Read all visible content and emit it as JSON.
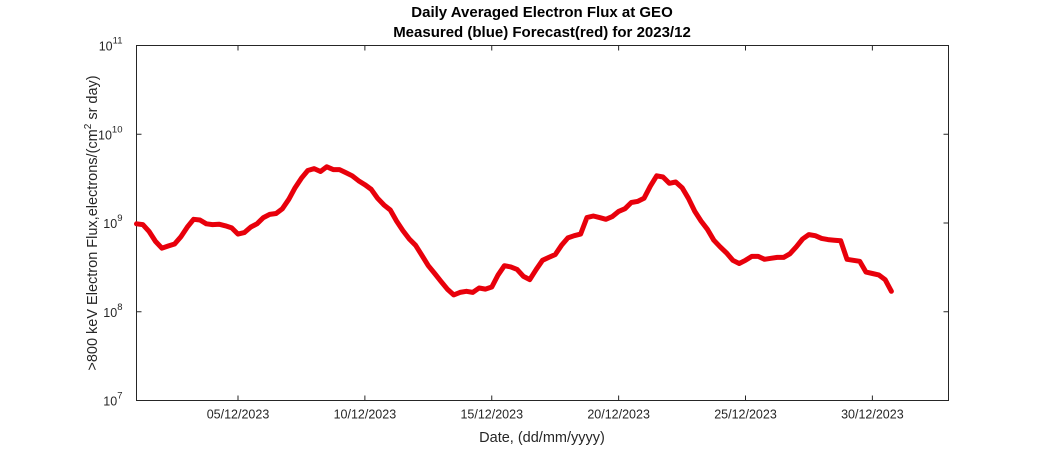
{
  "chart_data": {
    "type": "line",
    "title": "Daily Averaged Electron Flux at GEO",
    "subtitle": "Measured (blue) Forecast(red) for 2023/12",
    "xlabel": "Date, (dd/mm/yyyy)",
    "ylabel": ">800 keV Electron Flux,electrons/(cm^2 sr day)",
    "ylabel_prefix": ">800 keV Electron Flux,electrons/(cm",
    "ylabel_sup": "2",
    "ylabel_suffix": " sr day)",
    "y_scale": "log",
    "xlim": [
      "2023-12-01",
      "2024-01-02"
    ],
    "ylim": [
      10000000.0,
      100000000000.0
    ],
    "x_ticks": [
      {
        "date": "2023-12-05",
        "label": "05/12/2023"
      },
      {
        "date": "2023-12-10",
        "label": "10/12/2023"
      },
      {
        "date": "2023-12-15",
        "label": "15/12/2023"
      },
      {
        "date": "2023-12-20",
        "label": "20/12/2023"
      },
      {
        "date": "2023-12-25",
        "label": "25/12/2023"
      },
      {
        "date": "2023-12-30",
        "label": "30/12/2023"
      }
    ],
    "y_ticks": [
      {
        "value": 10000000.0,
        "base": "10",
        "exp": "7"
      },
      {
        "value": 100000000.0,
        "base": "10",
        "exp": "8"
      },
      {
        "value": 1000000000.0,
        "base": "10",
        "exp": "9"
      },
      {
        "value": 10000000000.0,
        "base": "10",
        "exp": "10"
      },
      {
        "value": 100000000000.0,
        "base": "10",
        "exp": "11"
      }
    ],
    "grid": false,
    "series": [
      {
        "color": "#e8000b",
        "points": [
          [
            "2023-12-01 00:00",
            980000000.0
          ],
          [
            "2023-12-01 06:00",
            960000000.0
          ],
          [
            "2023-12-01 12:00",
            800000000.0
          ],
          [
            "2023-12-01 18:00",
            620000000.0
          ],
          [
            "2023-12-02 00:00",
            520000000.0
          ],
          [
            "2023-12-02 06:00",
            550000000.0
          ],
          [
            "2023-12-02 12:00",
            580000000.0
          ],
          [
            "2023-12-02 18:00",
            700000000.0
          ],
          [
            "2023-12-03 00:00",
            900000000.0
          ],
          [
            "2023-12-03 06:00",
            1100000000.0
          ],
          [
            "2023-12-03 12:00",
            1080000000.0
          ],
          [
            "2023-12-03 18:00",
            980000000.0
          ],
          [
            "2023-12-04 00:00",
            960000000.0
          ],
          [
            "2023-12-04 06:00",
            970000000.0
          ],
          [
            "2023-12-04 12:00",
            930000000.0
          ],
          [
            "2023-12-04 18:00",
            880000000.0
          ],
          [
            "2023-12-05 00:00",
            750000000.0
          ],
          [
            "2023-12-05 06:00",
            780000000.0
          ],
          [
            "2023-12-05 12:00",
            900000000.0
          ],
          [
            "2023-12-05 18:00",
            980000000.0
          ],
          [
            "2023-12-06 00:00",
            1150000000.0
          ],
          [
            "2023-12-06 06:00",
            1250000000.0
          ],
          [
            "2023-12-06 12:00",
            1280000000.0
          ],
          [
            "2023-12-06 18:00",
            1450000000.0
          ],
          [
            "2023-12-07 00:00",
            1850000000.0
          ],
          [
            "2023-12-07 06:00",
            2500000000.0
          ],
          [
            "2023-12-07 12:00",
            3200000000.0
          ],
          [
            "2023-12-07 18:00",
            3900000000.0
          ],
          [
            "2023-12-08 00:00",
            4100000000.0
          ],
          [
            "2023-12-08 06:00",
            3800000000.0
          ],
          [
            "2023-12-08 12:00",
            4300000000.0
          ],
          [
            "2023-12-08 18:00",
            4000000000.0
          ],
          [
            "2023-12-09 00:00",
            4000000000.0
          ],
          [
            "2023-12-09 06:00",
            3700000000.0
          ],
          [
            "2023-12-09 12:00",
            3400000000.0
          ],
          [
            "2023-12-09 18:00",
            3000000000.0
          ],
          [
            "2023-12-10 00:00",
            2700000000.0
          ],
          [
            "2023-12-10 06:00",
            2400000000.0
          ],
          [
            "2023-12-10 12:00",
            1900000000.0
          ],
          [
            "2023-12-10 18:00",
            1600000000.0
          ],
          [
            "2023-12-11 00:00",
            1400000000.0
          ],
          [
            "2023-12-11 06:00",
            1050000000.0
          ],
          [
            "2023-12-11 12:00",
            820000000.0
          ],
          [
            "2023-12-11 18:00",
            660000000.0
          ],
          [
            "2023-12-12 00:00",
            560000000.0
          ],
          [
            "2023-12-12 06:00",
            430000000.0
          ],
          [
            "2023-12-12 12:00",
            330000000.0
          ],
          [
            "2023-12-12 18:00",
            270000000.0
          ],
          [
            "2023-12-13 00:00",
            220000000.0
          ],
          [
            "2023-12-13 06:00",
            180000000.0
          ],
          [
            "2023-12-13 12:00",
            155000000.0
          ],
          [
            "2023-12-13 18:00",
            165000000.0
          ],
          [
            "2023-12-14 00:00",
            170000000.0
          ],
          [
            "2023-12-14 06:00",
            165000000.0
          ],
          [
            "2023-12-14 12:00",
            185000000.0
          ],
          [
            "2023-12-14 18:00",
            180000000.0
          ],
          [
            "2023-12-15 00:00",
            190000000.0
          ],
          [
            "2023-12-15 06:00",
            260000000.0
          ],
          [
            "2023-12-15 12:00",
            330000000.0
          ],
          [
            "2023-12-15 18:00",
            320000000.0
          ],
          [
            "2023-12-16 00:00",
            300000000.0
          ],
          [
            "2023-12-16 06:00",
            250000000.0
          ],
          [
            "2023-12-16 12:00",
            230000000.0
          ],
          [
            "2023-12-16 18:00",
            300000000.0
          ],
          [
            "2023-12-17 00:00",
            380000000.0
          ],
          [
            "2023-12-17 06:00",
            410000000.0
          ],
          [
            "2023-12-17 12:00",
            440000000.0
          ],
          [
            "2023-12-17 18:00",
            560000000.0
          ],
          [
            "2023-12-18 00:00",
            680000000.0
          ],
          [
            "2023-12-18 06:00",
            720000000.0
          ],
          [
            "2023-12-18 12:00",
            750000000.0
          ],
          [
            "2023-12-18 18:00",
            1150000000.0
          ],
          [
            "2023-12-19 00:00",
            1200000000.0
          ],
          [
            "2023-12-19 06:00",
            1150000000.0
          ],
          [
            "2023-12-19 12:00",
            1100000000.0
          ],
          [
            "2023-12-19 18:00",
            1180000000.0
          ],
          [
            "2023-12-20 00:00",
            1350000000.0
          ],
          [
            "2023-12-20 06:00",
            1450000000.0
          ],
          [
            "2023-12-20 12:00",
            1700000000.0
          ],
          [
            "2023-12-20 18:00",
            1750000000.0
          ],
          [
            "2023-12-21 00:00",
            1900000000.0
          ],
          [
            "2023-12-21 06:00",
            2600000000.0
          ],
          [
            "2023-12-21 12:00",
            3400000000.0
          ],
          [
            "2023-12-21 18:00",
            3300000000.0
          ],
          [
            "2023-12-22 00:00",
            2800000000.0
          ],
          [
            "2023-12-22 06:00",
            2900000000.0
          ],
          [
            "2023-12-22 12:00",
            2500000000.0
          ],
          [
            "2023-12-22 18:00",
            1900000000.0
          ],
          [
            "2023-12-23 00:00",
            1350000000.0
          ],
          [
            "2023-12-23 06:00",
            1050000000.0
          ],
          [
            "2023-12-23 12:00",
            850000000.0
          ],
          [
            "2023-12-23 18:00",
            640000000.0
          ],
          [
            "2023-12-24 00:00",
            540000000.0
          ],
          [
            "2023-12-24 06:00",
            460000000.0
          ],
          [
            "2023-12-24 12:00",
            380000000.0
          ],
          [
            "2023-12-24 18:00",
            350000000.0
          ],
          [
            "2023-12-25 00:00",
            380000000.0
          ],
          [
            "2023-12-25 06:00",
            420000000.0
          ],
          [
            "2023-12-25 12:00",
            420000000.0
          ],
          [
            "2023-12-25 18:00",
            390000000.0
          ],
          [
            "2023-12-26 00:00",
            400000000.0
          ],
          [
            "2023-12-26 06:00",
            410000000.0
          ],
          [
            "2023-12-26 12:00",
            410000000.0
          ],
          [
            "2023-12-26 18:00",
            450000000.0
          ],
          [
            "2023-12-27 00:00",
            540000000.0
          ],
          [
            "2023-12-27 06:00",
            660000000.0
          ],
          [
            "2023-12-27 12:00",
            740000000.0
          ],
          [
            "2023-12-27 18:00",
            720000000.0
          ],
          [
            "2023-12-28 00:00",
            670000000.0
          ],
          [
            "2023-12-28 06:00",
            650000000.0
          ],
          [
            "2023-12-28 12:00",
            640000000.0
          ],
          [
            "2023-12-28 18:00",
            630000000.0
          ],
          [
            "2023-12-29 00:00",
            390000000.0
          ],
          [
            "2023-12-29 06:00",
            380000000.0
          ],
          [
            "2023-12-29 12:00",
            370000000.0
          ],
          [
            "2023-12-29 18:00",
            280000000.0
          ],
          [
            "2023-12-30 00:00",
            270000000.0
          ],
          [
            "2023-12-30 06:00",
            260000000.0
          ],
          [
            "2023-12-30 12:00",
            230000000.0
          ],
          [
            "2023-12-30 18:00",
            170000000.0
          ]
        ]
      }
    ]
  }
}
